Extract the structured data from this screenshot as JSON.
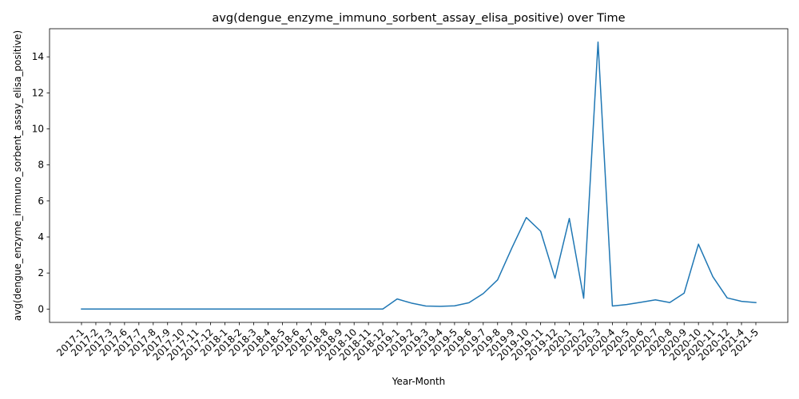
{
  "chart_data": {
    "type": "line",
    "title": "avg(dengue_enzyme_immuno_sorbent_assay_elisa_positive) over Time",
    "xlabel": "Year-Month",
    "ylabel": "avg(dengue_enzyme_immuno_sorbent_assay_elisa_positive)",
    "grid": false,
    "legend": "none",
    "ylim": [
      -0.74,
      15.56
    ],
    "yticks": [
      0,
      2,
      4,
      6,
      8,
      10,
      12,
      14
    ],
    "categories": [
      "2017-1",
      "2017-2",
      "2017-3",
      "2017-6",
      "2017-7",
      "2017-8",
      "2017-9",
      "2017-10",
      "2017-11",
      "2017-12",
      "2018-1",
      "2018-2",
      "2018-3",
      "2018-4",
      "2018-5",
      "2018-6",
      "2018-7",
      "2018-8",
      "2018-9",
      "2018-10",
      "2018-11",
      "2018-12",
      "2019-1",
      "2019-2",
      "2019-3",
      "2019-4",
      "2019-5",
      "2019-6",
      "2019-7",
      "2019-8",
      "2019-9",
      "2019-10",
      "2019-11",
      "2019-12",
      "2020-1",
      "2020-2",
      "2020-3",
      "2020-4",
      "2020-5",
      "2020-6",
      "2020-7",
      "2020-8",
      "2020-9",
      "2020-10",
      "2020-11",
      "2020-12",
      "2021-4",
      "2021-5"
    ],
    "series": [
      {
        "color": "#1f77b4",
        "values": [
          0,
          0,
          0,
          0,
          0,
          0,
          0,
          0,
          0,
          0,
          0,
          0,
          0,
          0,
          0,
          0,
          0,
          0,
          0,
          0,
          0,
          0,
          0.56,
          0.33,
          0.17,
          0.15,
          0.18,
          0.35,
          0.86,
          1.62,
          3.4,
          5.08,
          4.32,
          1.71,
          5.03,
          0.6,
          14.82,
          0.17,
          0.25,
          0.38,
          0.51,
          0.36,
          0.88,
          3.6,
          1.8,
          0.62,
          0.43,
          0.36
        ]
      }
    ]
  }
}
